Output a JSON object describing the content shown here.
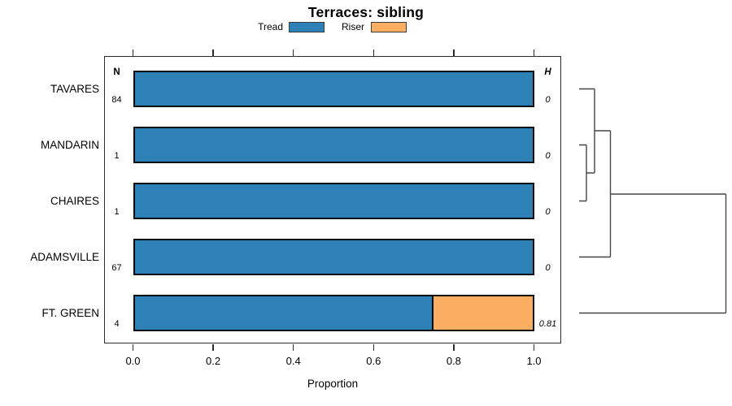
{
  "title": "Terraces: sibling",
  "legend": [
    {
      "label": "Tread",
      "color": "#2E81B7"
    },
    {
      "label": "Riser",
      "color": "#FBAD62"
    }
  ],
  "columns": {
    "n_header": "N",
    "h_header": "H"
  },
  "rows": [
    {
      "label": "TAVARES",
      "n": "84",
      "h": "0",
      "tread": 1.0,
      "riser": 0.0
    },
    {
      "label": "MANDARIN",
      "n": "1",
      "h": "0",
      "tread": 1.0,
      "riser": 0.0
    },
    {
      "label": "CHAIRES",
      "n": "1",
      "h": "0",
      "tread": 1.0,
      "riser": 0.0
    },
    {
      "label": "ADAMSVILLE",
      "n": "67",
      "h": "0",
      "tread": 1.0,
      "riser": 0.0
    },
    {
      "label": "FT. GREEN",
      "n": "4",
      "h": "0.81",
      "tread": 0.75,
      "riser": 0.25
    }
  ],
  "axis": {
    "label": "Proportion",
    "ticks": [
      "0.0",
      "0.2",
      "0.4",
      "0.6",
      "0.8",
      "1.0"
    ]
  },
  "colors": {
    "tread": "#2E81B7",
    "riser": "#FBAD62",
    "frame": "#2b2b2b",
    "dendrogram": "#454545"
  },
  "chart_data": {
    "type": "bar",
    "orientation": "horizontal",
    "stacked": true,
    "title": "Terraces: sibling",
    "categories": [
      "TAVARES",
      "MANDARIN",
      "CHAIRES",
      "ADAMSVILLE",
      "FT. GREEN"
    ],
    "series": [
      {
        "name": "Tread",
        "values": [
          1.0,
          1.0,
          1.0,
          1.0,
          0.75
        ]
      },
      {
        "name": "Riser",
        "values": [
          0.0,
          0.0,
          0.0,
          0.0,
          0.25
        ]
      }
    ],
    "n_counts": [
      84,
      1,
      1,
      67,
      4
    ],
    "h_values": [
      0,
      0,
      0,
      0,
      0.81
    ],
    "xlabel": "Proportion",
    "xlim": [
      0.0,
      1.0
    ],
    "xticks": [
      0.0,
      0.2,
      0.4,
      0.6,
      0.8,
      1.0
    ],
    "legend_position": "top-center",
    "grid": false,
    "annotations": "Dendrogram on right links rows: MANDARIN+CHAIRES merge first, then TAVARES, then ADAMSVILLE; FT. GREEN joins last at height 0.81"
  }
}
